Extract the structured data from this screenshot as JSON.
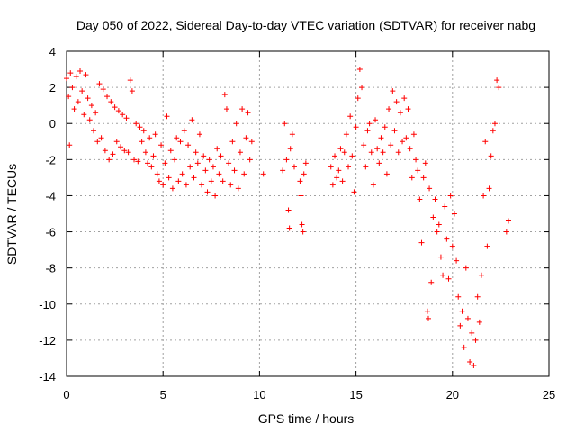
{
  "chart_data": {
    "type": "scatter",
    "title": "Day 050 of 2022, Sidereal Day-to-day VTEC variation (SDTVAR) for receiver nabg",
    "xlabel": "GPS time / hours",
    "ylabel": "SDTVAR / TECUs",
    "xlim": [
      0,
      25
    ],
    "ylim": [
      -14,
      4
    ],
    "xticks": [
      0,
      5,
      10,
      15,
      20,
      25
    ],
    "yticks": [
      -14,
      -12,
      -10,
      -8,
      -6,
      -4,
      -2,
      0,
      2,
      4
    ],
    "xtick_labels": [
      "0",
      "5",
      "10",
      "15",
      "20",
      "25"
    ],
    "ytick_labels": [
      "-14",
      "-12",
      "-10",
      "-8",
      "-6",
      "-4",
      "-2",
      "0",
      "2",
      "4"
    ],
    "grid": true,
    "marker": "+",
    "color": "#ff0000",
    "series": [
      {
        "name": "SDTVAR",
        "points": [
          [
            0.0,
            2.5
          ],
          [
            0.1,
            1.5
          ],
          [
            0.15,
            -1.2
          ],
          [
            0.2,
            2.8
          ],
          [
            0.3,
            2.0
          ],
          [
            0.4,
            0.8
          ],
          [
            0.5,
            2.6
          ],
          [
            0.6,
            1.2
          ],
          [
            0.7,
            2.9
          ],
          [
            0.8,
            1.8
          ],
          [
            0.9,
            0.5
          ],
          [
            1.0,
            2.7
          ],
          [
            1.1,
            1.4
          ],
          [
            1.2,
            0.2
          ],
          [
            1.3,
            1.0
          ],
          [
            1.4,
            -0.4
          ],
          [
            1.5,
            0.6
          ],
          [
            1.6,
            -1.0
          ],
          [
            1.7,
            2.2
          ],
          [
            1.8,
            -0.8
          ],
          [
            1.9,
            1.9
          ],
          [
            2.0,
            -1.5
          ],
          [
            2.1,
            1.5
          ],
          [
            2.2,
            -2.0
          ],
          [
            2.3,
            1.2
          ],
          [
            2.4,
            -1.7
          ],
          [
            2.5,
            0.9
          ],
          [
            2.6,
            -1.0
          ],
          [
            2.7,
            0.7
          ],
          [
            2.8,
            -1.3
          ],
          [
            2.9,
            0.5
          ],
          [
            3.0,
            -1.5
          ],
          [
            3.1,
            0.3
          ],
          [
            3.2,
            -1.6
          ],
          [
            3.3,
            2.4
          ],
          [
            3.4,
            1.8
          ],
          [
            3.5,
            -2.0
          ],
          [
            3.6,
            0.0
          ],
          [
            3.7,
            -2.1
          ],
          [
            3.8,
            -0.2
          ],
          [
            3.9,
            -1.0
          ],
          [
            4.0,
            -0.4
          ],
          [
            4.1,
            -1.6
          ],
          [
            4.2,
            -2.2
          ],
          [
            4.3,
            -0.8
          ],
          [
            4.4,
            -2.4
          ],
          [
            4.5,
            -1.8
          ],
          [
            4.6,
            -0.6
          ],
          [
            4.7,
            -2.8
          ],
          [
            4.8,
            -3.2
          ],
          [
            4.9,
            -1.2
          ],
          [
            5.0,
            -3.4
          ],
          [
            5.1,
            -2.2
          ],
          [
            5.2,
            0.4
          ],
          [
            5.3,
            -3.0
          ],
          [
            5.4,
            -1.5
          ],
          [
            5.5,
            -3.6
          ],
          [
            5.6,
            -2.0
          ],
          [
            5.7,
            -0.8
          ],
          [
            5.8,
            -3.2
          ],
          [
            5.9,
            -1.0
          ],
          [
            6.0,
            -2.8
          ],
          [
            6.1,
            -0.4
          ],
          [
            6.2,
            -3.4
          ],
          [
            6.3,
            -1.2
          ],
          [
            6.4,
            -2.4
          ],
          [
            6.5,
            0.2
          ],
          [
            6.6,
            -3.0
          ],
          [
            6.7,
            -1.6
          ],
          [
            6.8,
            -2.2
          ],
          [
            6.9,
            -0.6
          ],
          [
            7.0,
            -3.4
          ],
          [
            7.1,
            -1.8
          ],
          [
            7.2,
            -2.6
          ],
          [
            7.3,
            -3.8
          ],
          [
            7.4,
            -2.0
          ],
          [
            7.5,
            -3.2
          ],
          [
            7.6,
            -2.4
          ],
          [
            7.7,
            -4.0
          ],
          [
            7.8,
            -1.4
          ],
          [
            7.9,
            -2.8
          ],
          [
            8.0,
            -1.8
          ],
          [
            8.1,
            -3.2
          ],
          [
            8.2,
            1.6
          ],
          [
            8.3,
            0.8
          ],
          [
            8.4,
            -2.2
          ],
          [
            8.5,
            -3.4
          ],
          [
            8.6,
            -1.0
          ],
          [
            8.7,
            -2.6
          ],
          [
            8.8,
            0.0
          ],
          [
            8.9,
            -3.6
          ],
          [
            9.0,
            -1.6
          ],
          [
            9.1,
            0.8
          ],
          [
            9.2,
            -2.8
          ],
          [
            9.3,
            -0.8
          ],
          [
            9.4,
            0.6
          ],
          [
            9.5,
            -2.0
          ],
          [
            9.6,
            -1.0
          ],
          [
            10.2,
            -2.8
          ],
          [
            11.2,
            -2.6
          ],
          [
            11.3,
            0.0
          ],
          [
            11.4,
            -2.0
          ],
          [
            11.5,
            -4.8
          ],
          [
            11.55,
            -5.8
          ],
          [
            11.6,
            -1.4
          ],
          [
            11.7,
            -0.6
          ],
          [
            11.8,
            -2.4
          ],
          [
            12.1,
            -3.2
          ],
          [
            12.15,
            -4.0
          ],
          [
            12.2,
            -5.6
          ],
          [
            12.25,
            -6.0
          ],
          [
            12.3,
            -2.8
          ],
          [
            12.4,
            -2.2
          ],
          [
            13.7,
            -2.4
          ],
          [
            13.8,
            -3.4
          ],
          [
            13.9,
            -1.8
          ],
          [
            14.0,
            -3.0
          ],
          [
            14.1,
            -2.6
          ],
          [
            14.2,
            -1.4
          ],
          [
            14.3,
            -3.2
          ],
          [
            14.4,
            -1.6
          ],
          [
            14.5,
            -0.6
          ],
          [
            14.6,
            -2.4
          ],
          [
            14.7,
            0.4
          ],
          [
            14.8,
            -1.8
          ],
          [
            14.9,
            -3.8
          ],
          [
            15.0,
            -0.2
          ],
          [
            15.1,
            1.4
          ],
          [
            15.2,
            3.0
          ],
          [
            15.3,
            2.0
          ],
          [
            15.4,
            -1.2
          ],
          [
            15.5,
            -2.4
          ],
          [
            15.6,
            -0.4
          ],
          [
            15.7,
            0.0
          ],
          [
            15.8,
            -1.6
          ],
          [
            15.9,
            -3.4
          ],
          [
            16.0,
            0.2
          ],
          [
            16.1,
            -1.4
          ],
          [
            16.2,
            -2.2
          ],
          [
            16.3,
            -0.8
          ],
          [
            16.4,
            -1.6
          ],
          [
            16.5,
            -0.2
          ],
          [
            16.6,
            -2.8
          ],
          [
            16.7,
            0.8
          ],
          [
            16.8,
            -1.2
          ],
          [
            16.9,
            1.8
          ],
          [
            17.0,
            -0.4
          ],
          [
            17.1,
            1.2
          ],
          [
            17.2,
            -1.6
          ],
          [
            17.3,
            0.6
          ],
          [
            17.4,
            -1.0
          ],
          [
            17.5,
            1.4
          ],
          [
            17.6,
            -0.8
          ],
          [
            17.7,
            0.8
          ],
          [
            17.8,
            -1.4
          ],
          [
            17.9,
            -3.0
          ],
          [
            18.0,
            -0.6
          ],
          [
            18.1,
            -2.0
          ],
          [
            18.2,
            -2.6
          ],
          [
            18.3,
            -4.2
          ],
          [
            18.4,
            -6.6
          ],
          [
            18.5,
            -3.0
          ],
          [
            18.6,
            -2.2
          ],
          [
            18.7,
            -10.4
          ],
          [
            18.75,
            -10.8
          ],
          [
            18.8,
            -3.6
          ],
          [
            18.9,
            -8.8
          ],
          [
            19.0,
            -5.2
          ],
          [
            19.1,
            -4.2
          ],
          [
            19.2,
            -6.0
          ],
          [
            19.3,
            -5.6
          ],
          [
            19.4,
            -7.4
          ],
          [
            19.5,
            -8.4
          ],
          [
            19.6,
            -4.6
          ],
          [
            19.7,
            -6.4
          ],
          [
            19.8,
            -8.6
          ],
          [
            19.9,
            -4.0
          ],
          [
            20.0,
            -6.8
          ],
          [
            20.1,
            -5.0
          ],
          [
            20.2,
            -7.6
          ],
          [
            20.3,
            -9.6
          ],
          [
            20.4,
            -11.2
          ],
          [
            20.5,
            -10.4
          ],
          [
            20.6,
            -12.4
          ],
          [
            20.7,
            -8.0
          ],
          [
            20.8,
            -10.8
          ],
          [
            20.9,
            -13.2
          ],
          [
            21.0,
            -11.6
          ],
          [
            21.1,
            -13.4
          ],
          [
            21.2,
            -12.0
          ],
          [
            21.3,
            -9.6
          ],
          [
            21.4,
            -11.0
          ],
          [
            21.5,
            -8.4
          ],
          [
            21.6,
            -4.0
          ],
          [
            21.7,
            -1.0
          ],
          [
            21.8,
            -6.8
          ],
          [
            21.9,
            -3.6
          ],
          [
            22.0,
            -1.8
          ],
          [
            22.1,
            -0.4
          ],
          [
            22.2,
            0.0
          ],
          [
            22.3,
            2.4
          ],
          [
            22.4,
            2.0
          ],
          [
            22.8,
            -6.0
          ],
          [
            22.9,
            -5.4
          ]
        ]
      }
    ]
  }
}
